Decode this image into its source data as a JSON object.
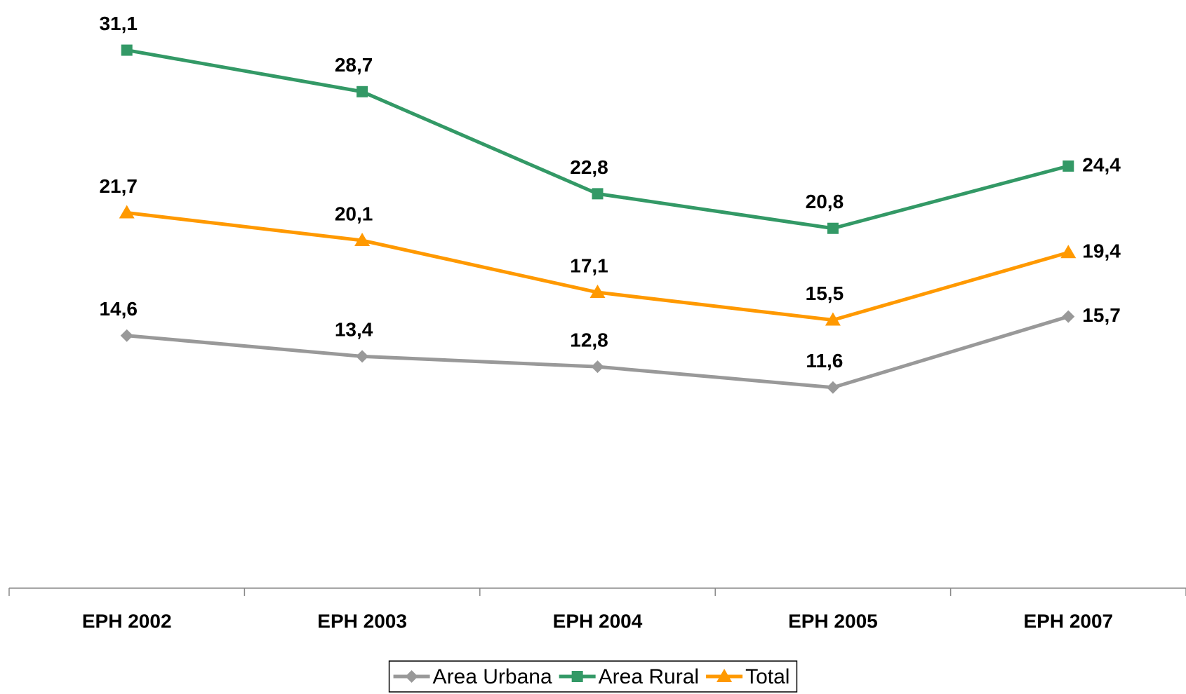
{
  "chart_data": {
    "type": "line",
    "categories": [
      "EPH 2002",
      "EPH 2003",
      "EPH 2004",
      "EPH 2005",
      "EPH 2007"
    ],
    "series": [
      {
        "name": "Area Urbana",
        "color": "#999999",
        "marker": "diamond",
        "values": [
          14.6,
          13.4,
          12.8,
          11.6,
          15.7
        ],
        "value_labels": [
          "14,6",
          "13,4",
          "12,8",
          "11,6",
          "15,7"
        ]
      },
      {
        "name": "Area Rural",
        "color": "#339966",
        "marker": "square",
        "values": [
          31.1,
          28.7,
          22.8,
          20.8,
          24.4
        ],
        "value_labels": [
          "31,1",
          "28,7",
          "22,8",
          "20,8",
          "24,4"
        ]
      },
      {
        "name": "Total",
        "color": "#FF9900",
        "marker": "triangle",
        "values": [
          21.7,
          20.1,
          17.1,
          15.5,
          19.4
        ],
        "value_labels": [
          "21,7",
          "20,1",
          "17,1",
          "15,5",
          "19,4"
        ]
      }
    ],
    "ylim": [
      0,
      34
    ],
    "legend": "bottom"
  }
}
